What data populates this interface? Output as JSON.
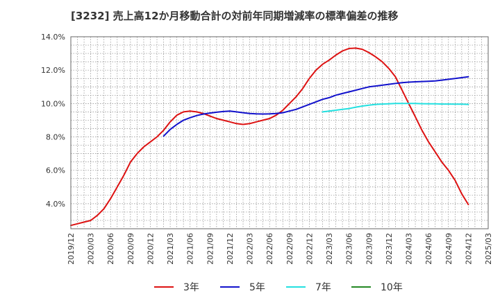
{
  "chart_data": {
    "type": "line",
    "title": "[3232]  売上高12か月移動合計の対前年同期増減率の標準偏差の推移",
    "xlabel": "",
    "ylabel": "",
    "ylim": [
      2.5,
      14.0
    ],
    "yticks": [
      4.0,
      6.0,
      8.0,
      10.0,
      12.0,
      14.0
    ],
    "ytick_labels": [
      "4.0%",
      "6.0%",
      "8.0%",
      "10.0%",
      "12.0%",
      "14.0%"
    ],
    "xticks": [
      "2019/12",
      "2020/03",
      "2020/06",
      "2020/09",
      "2020/12",
      "2021/03",
      "2021/06",
      "2021/09",
      "2021/12",
      "2022/03",
      "2022/06",
      "2022/09",
      "2022/12",
      "2023/03",
      "2023/06",
      "2023/09",
      "2023/12",
      "2024/03",
      "2024/06",
      "2024/09",
      "2024/12",
      "2025/03"
    ],
    "grid": true,
    "legend_position": "bottom",
    "series": [
      {
        "name": "3年",
        "color": "#dd1111",
        "x": [
          "2019/12",
          "2020/01",
          "2020/02",
          "2020/03",
          "2020/04",
          "2020/05",
          "2020/06",
          "2020/07",
          "2020/08",
          "2020/09",
          "2020/10",
          "2020/11",
          "2020/12",
          "2021/01",
          "2021/02",
          "2021/03",
          "2021/04",
          "2021/05",
          "2021/06",
          "2021/07",
          "2021/08",
          "2021/09",
          "2021/10",
          "2021/11",
          "2021/12",
          "2022/01",
          "2022/02",
          "2022/03",
          "2022/04",
          "2022/05",
          "2022/06",
          "2022/07",
          "2022/08",
          "2022/09",
          "2022/10",
          "2022/11",
          "2022/12",
          "2023/01",
          "2023/02",
          "2023/03",
          "2023/04",
          "2023/05",
          "2023/06",
          "2023/07",
          "2023/08",
          "2023/09",
          "2023/10",
          "2023/11",
          "2023/12",
          "2024/01",
          "2024/02",
          "2024/03",
          "2024/04",
          "2024/05",
          "2024/06",
          "2024/07",
          "2024/08",
          "2024/09",
          "2024/10",
          "2024/11",
          "2024/12"
        ],
        "values": [
          2.7,
          2.8,
          2.9,
          3.0,
          3.3,
          3.7,
          4.3,
          5.0,
          5.7,
          6.5,
          7.0,
          7.4,
          7.7,
          8.0,
          8.4,
          8.9,
          9.3,
          9.5,
          9.55,
          9.5,
          9.4,
          9.25,
          9.1,
          9.0,
          8.9,
          8.8,
          8.75,
          8.8,
          8.9,
          9.0,
          9.1,
          9.3,
          9.6,
          10.0,
          10.4,
          10.9,
          11.5,
          12.0,
          12.35,
          12.6,
          12.9,
          13.15,
          13.3,
          13.32,
          13.25,
          13.05,
          12.8,
          12.5,
          12.1,
          11.6,
          10.8,
          10.0,
          9.2,
          8.4,
          7.7,
          7.1,
          6.5,
          6.0,
          5.4,
          4.6,
          3.95
        ]
      },
      {
        "name": "5年",
        "color": "#1111cc",
        "x": [
          "2021/12",
          "2022/01",
          "2022/02",
          "2022/03",
          "2022/04",
          "2022/05",
          "2022/06",
          "2022/07",
          "2022/08",
          "2022/09",
          "2022/10",
          "2022/11",
          "2022/12",
          "2023/01",
          "2023/02",
          "2023/03",
          "2023/04",
          "2023/05",
          "2023/06",
          "2023/07",
          "2023/08",
          "2023/09",
          "2023/10",
          "2023/11",
          "2023/12",
          "2024/01",
          "2024/02",
          "2024/03",
          "2024/04",
          "2024/05",
          "2024/06",
          "2024/07",
          "2024/08",
          "2024/09",
          "2024/10",
          "2024/11",
          "2024/12"
        ],
        "values": [
          9.55,
          9.5,
          9.45,
          9.4,
          9.38,
          9.37,
          9.38,
          9.4,
          9.45,
          9.55,
          9.65,
          9.8,
          9.95,
          10.1,
          10.25,
          10.35,
          10.5,
          10.6,
          10.7,
          10.8,
          10.9,
          11.0,
          11.05,
          11.1,
          11.15,
          11.2,
          11.25,
          11.28,
          11.3,
          11.32,
          11.33,
          11.35,
          11.4,
          11.45,
          11.5,
          11.55,
          11.6
        ]
      },
      {
        "name": "7年",
        "color": "#22e0e0",
        "x": [
          "2023/02",
          "2023/03",
          "2023/04",
          "2023/05",
          "2023/06",
          "2023/07",
          "2023/08",
          "2023/09",
          "2023/10",
          "2023/11",
          "2023/12",
          "2024/01",
          "2024/02",
          "2024/03",
          "2024/04",
          "2024/05",
          "2024/06",
          "2024/07",
          "2024/08",
          "2024/09",
          "2024/10",
          "2024/11",
          "2024/12"
        ],
        "values": [
          9.5,
          9.55,
          9.6,
          9.65,
          9.7,
          9.78,
          9.85,
          9.9,
          9.95,
          9.97,
          9.98,
          10.0,
          10.0,
          10.0,
          10.0,
          9.99,
          9.98,
          9.98,
          9.97,
          9.97,
          9.96,
          9.96,
          9.95
        ]
      },
      {
        "name": "10年",
        "color": "#228822",
        "x": [],
        "values": []
      }
    ],
    "series_early": {
      "5年_start": {
        "x": [
          "2021/02",
          "2021/03",
          "2021/04",
          "2021/05",
          "2021/06",
          "2021/07",
          "2021/08",
          "2021/09",
          "2021/10",
          "2021/11"
        ],
        "values": [
          8.05,
          8.45,
          8.75,
          9.0,
          9.15,
          9.28,
          9.37,
          9.43,
          9.48,
          9.52
        ]
      }
    }
  }
}
